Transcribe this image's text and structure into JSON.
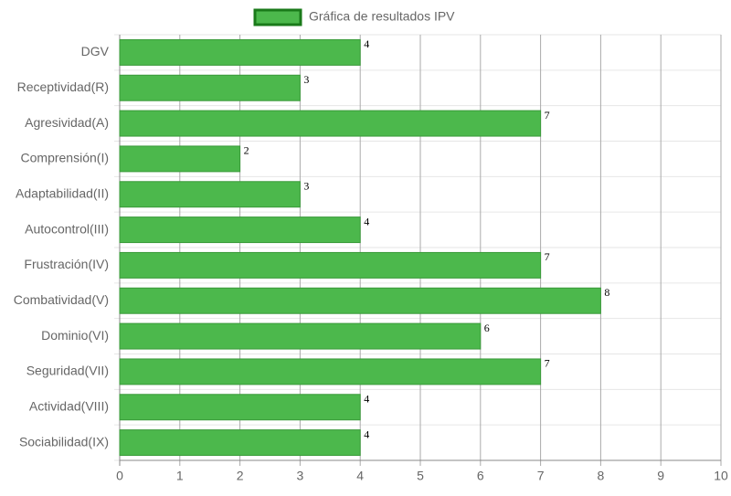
{
  "chart_data": {
    "type": "bar",
    "orientation": "horizontal",
    "categories": [
      "DGV",
      "Receptividad(R)",
      "Agresividad(A)",
      "Comprensión(I)",
      "Adaptabilidad(II)",
      "Autocontrol(III)",
      "Frustración(IV)",
      "Combatividad(V)",
      "Dominio(VI)",
      "Seguridad(VII)",
      "Actividad(VIII)",
      "Sociabilidad(IX)"
    ],
    "series": [
      {
        "name": "Gráfica de resultados IPV",
        "color": "#4cb84c",
        "values": [
          4,
          3,
          7,
          2,
          3,
          4,
          7,
          8,
          6,
          7,
          4,
          4
        ]
      }
    ],
    "xlim": [
      0,
      10
    ],
    "xticks": [
      0,
      1,
      2,
      3,
      4,
      5,
      6,
      7,
      8,
      9,
      10
    ],
    "grid": true,
    "legend": "top"
  }
}
